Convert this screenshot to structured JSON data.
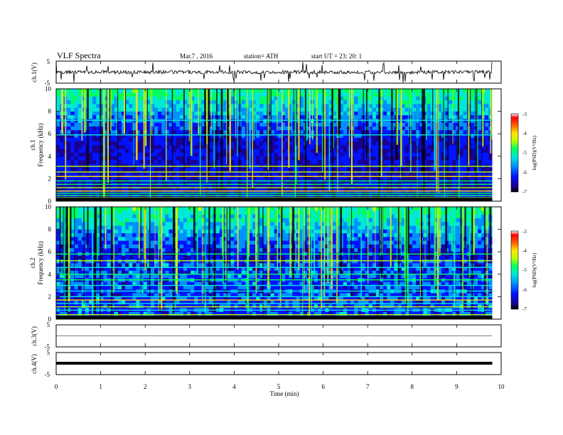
{
  "header": {
    "title": "VLF  Spectra",
    "date": "Mar.7  , 2016",
    "station": "station= ATH",
    "start": "start  UT =    23: 20: 1"
  },
  "colors": {
    "axis": "#000000",
    "colormap": [
      "#000000",
      "#1a0090",
      "#0014ff",
      "#0090ff",
      "#00e8d8",
      "#00ff60",
      "#b8ff00",
      "#ffe600",
      "#ff6000",
      "#ff0000",
      "#ffffff"
    ]
  },
  "chart_data": [
    {
      "type": "line",
      "name": "ch1-waveform",
      "ylabel": "ch.1(V)",
      "ylim": [
        -5,
        5
      ],
      "ytick_labels": [
        "5",
        "-5"
      ],
      "xlim": [
        0,
        10
      ],
      "baseline": 0,
      "series": [
        {
          "values_summary": "noisy signal centred near 0 V with sporadic spikes"
        }
      ]
    },
    {
      "type": "heatmap",
      "name": "ch1-spectrogram",
      "ylabel": "ch.1",
      "ylabel2": "Frequency (kHz)",
      "ylim": [
        0,
        10
      ],
      "ytick_labels": [
        "0",
        "2",
        "4",
        "6",
        "8",
        "10"
      ],
      "xlim": [
        0,
        9.8
      ],
      "colorbar": {
        "label": "log(PSD)(V²/Hz)",
        "range": [
          -7,
          -3
        ],
        "tick_labels": [
          "-3",
          "-4",
          "-5",
          "-6",
          "-7"
        ]
      },
      "bands_khz": [
        0.3,
        0.5,
        0.7,
        0.9,
        1.2,
        1.5,
        1.8,
        2.2,
        2.6,
        3.1,
        5.9,
        7.2
      ]
    },
    {
      "type": "heatmap",
      "name": "ch2-spectrogram",
      "ylabel": "ch.2",
      "ylabel2": "Frequency (kHz)",
      "ylim": [
        0,
        10
      ],
      "ytick_labels": [
        "0",
        "2",
        "4",
        "6",
        "8",
        "10"
      ],
      "xlim": [
        0,
        9.8
      ],
      "colorbar": {
        "label": "log(PSD)(V²/Hz)",
        "range": [
          -7,
          -3
        ],
        "tick_labels": [
          "-3",
          "-4",
          "-5",
          "-6",
          "-7"
        ]
      },
      "bands_khz": [
        0.4,
        0.8,
        1.1,
        1.4,
        1.7,
        2.0,
        2.5,
        3.0,
        3.5,
        4.0,
        4.6,
        5.2,
        5.8
      ]
    },
    {
      "type": "line",
      "name": "ch3-waveform",
      "ylabel": "ch.3(V)",
      "ylim": [
        -5,
        5
      ],
      "ytick_labels": [
        "5",
        "-5"
      ],
      "xlim": [
        0,
        10
      ],
      "series": [
        {
          "values_summary": "flat trace"
        }
      ]
    },
    {
      "type": "line",
      "name": "ch4-waveform",
      "ylabel": "ch.4(V)",
      "ylim": [
        -5,
        5
      ],
      "ytick_labels": [
        "5",
        "-5"
      ],
      "xlim": [
        0,
        10
      ],
      "baseline": 0,
      "series": [
        {
          "values_summary": "thick band near 0 V"
        }
      ]
    }
  ],
  "xaxis": {
    "label": "Time  (min)",
    "range": [
      0,
      10
    ],
    "tick_values": [
      0,
      1,
      2,
      3,
      4,
      5,
      6,
      7,
      8,
      9,
      10
    ],
    "tick_labels": [
      "0",
      "1",
      "2",
      "3",
      "4",
      "5",
      "6",
      "7",
      "8",
      "9",
      "10"
    ]
  }
}
